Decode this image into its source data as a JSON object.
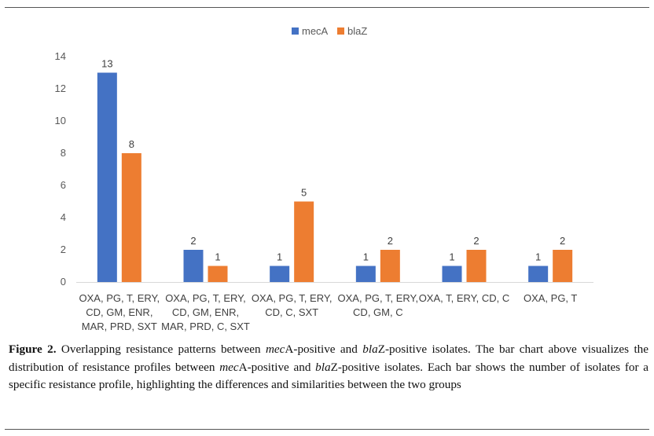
{
  "chart_data": {
    "type": "bar",
    "title": "",
    "xlabel": "",
    "ylabel": "",
    "ylim": [
      0,
      14
    ],
    "yticks": [
      0,
      2,
      4,
      6,
      8,
      10,
      12,
      14
    ],
    "grid": false,
    "legend_position": "top-center",
    "categories": [
      [
        "OXA, PG, T, ERY,",
        "CD, GM, ENR,",
        "MAR, PRD, SXT"
      ],
      [
        "OXA, PG, T, ERY,",
        "CD, GM, ENR,",
        "MAR, PRD, C, SXT"
      ],
      [
        "OXA, PG, T, ERY,",
        "CD, C, SXT"
      ],
      [
        "OXA, PG, T, ERY,",
        "CD, GM, C"
      ],
      [
        "OXA, T, ERY, CD, C"
      ],
      [
        "OXA, PG, T"
      ]
    ],
    "series": [
      {
        "name": "mecA",
        "color": "#4472C4",
        "values": [
          13,
          2,
          1,
          1,
          1,
          1
        ]
      },
      {
        "name": "blaZ",
        "color": "#ED7D31",
        "values": [
          8,
          1,
          5,
          2,
          2,
          2
        ]
      }
    ]
  },
  "caption": {
    "label": "Figure 2.",
    "t1": " Overlapping resistance patterns between ",
    "gene1": "mec",
    "t2": "A-positive and ",
    "gene2": "bla",
    "t3": "Z-positive isolates. The bar chart above visualizes the distribution of resistance profiles between ",
    "gene3": "mec",
    "t4": "A-positive and ",
    "gene4": "bla",
    "t5": "Z-positive isolates. Each bar shows the number of isolates for a specific resistance profile, highlighting the differences and similarities between the two groups"
  }
}
